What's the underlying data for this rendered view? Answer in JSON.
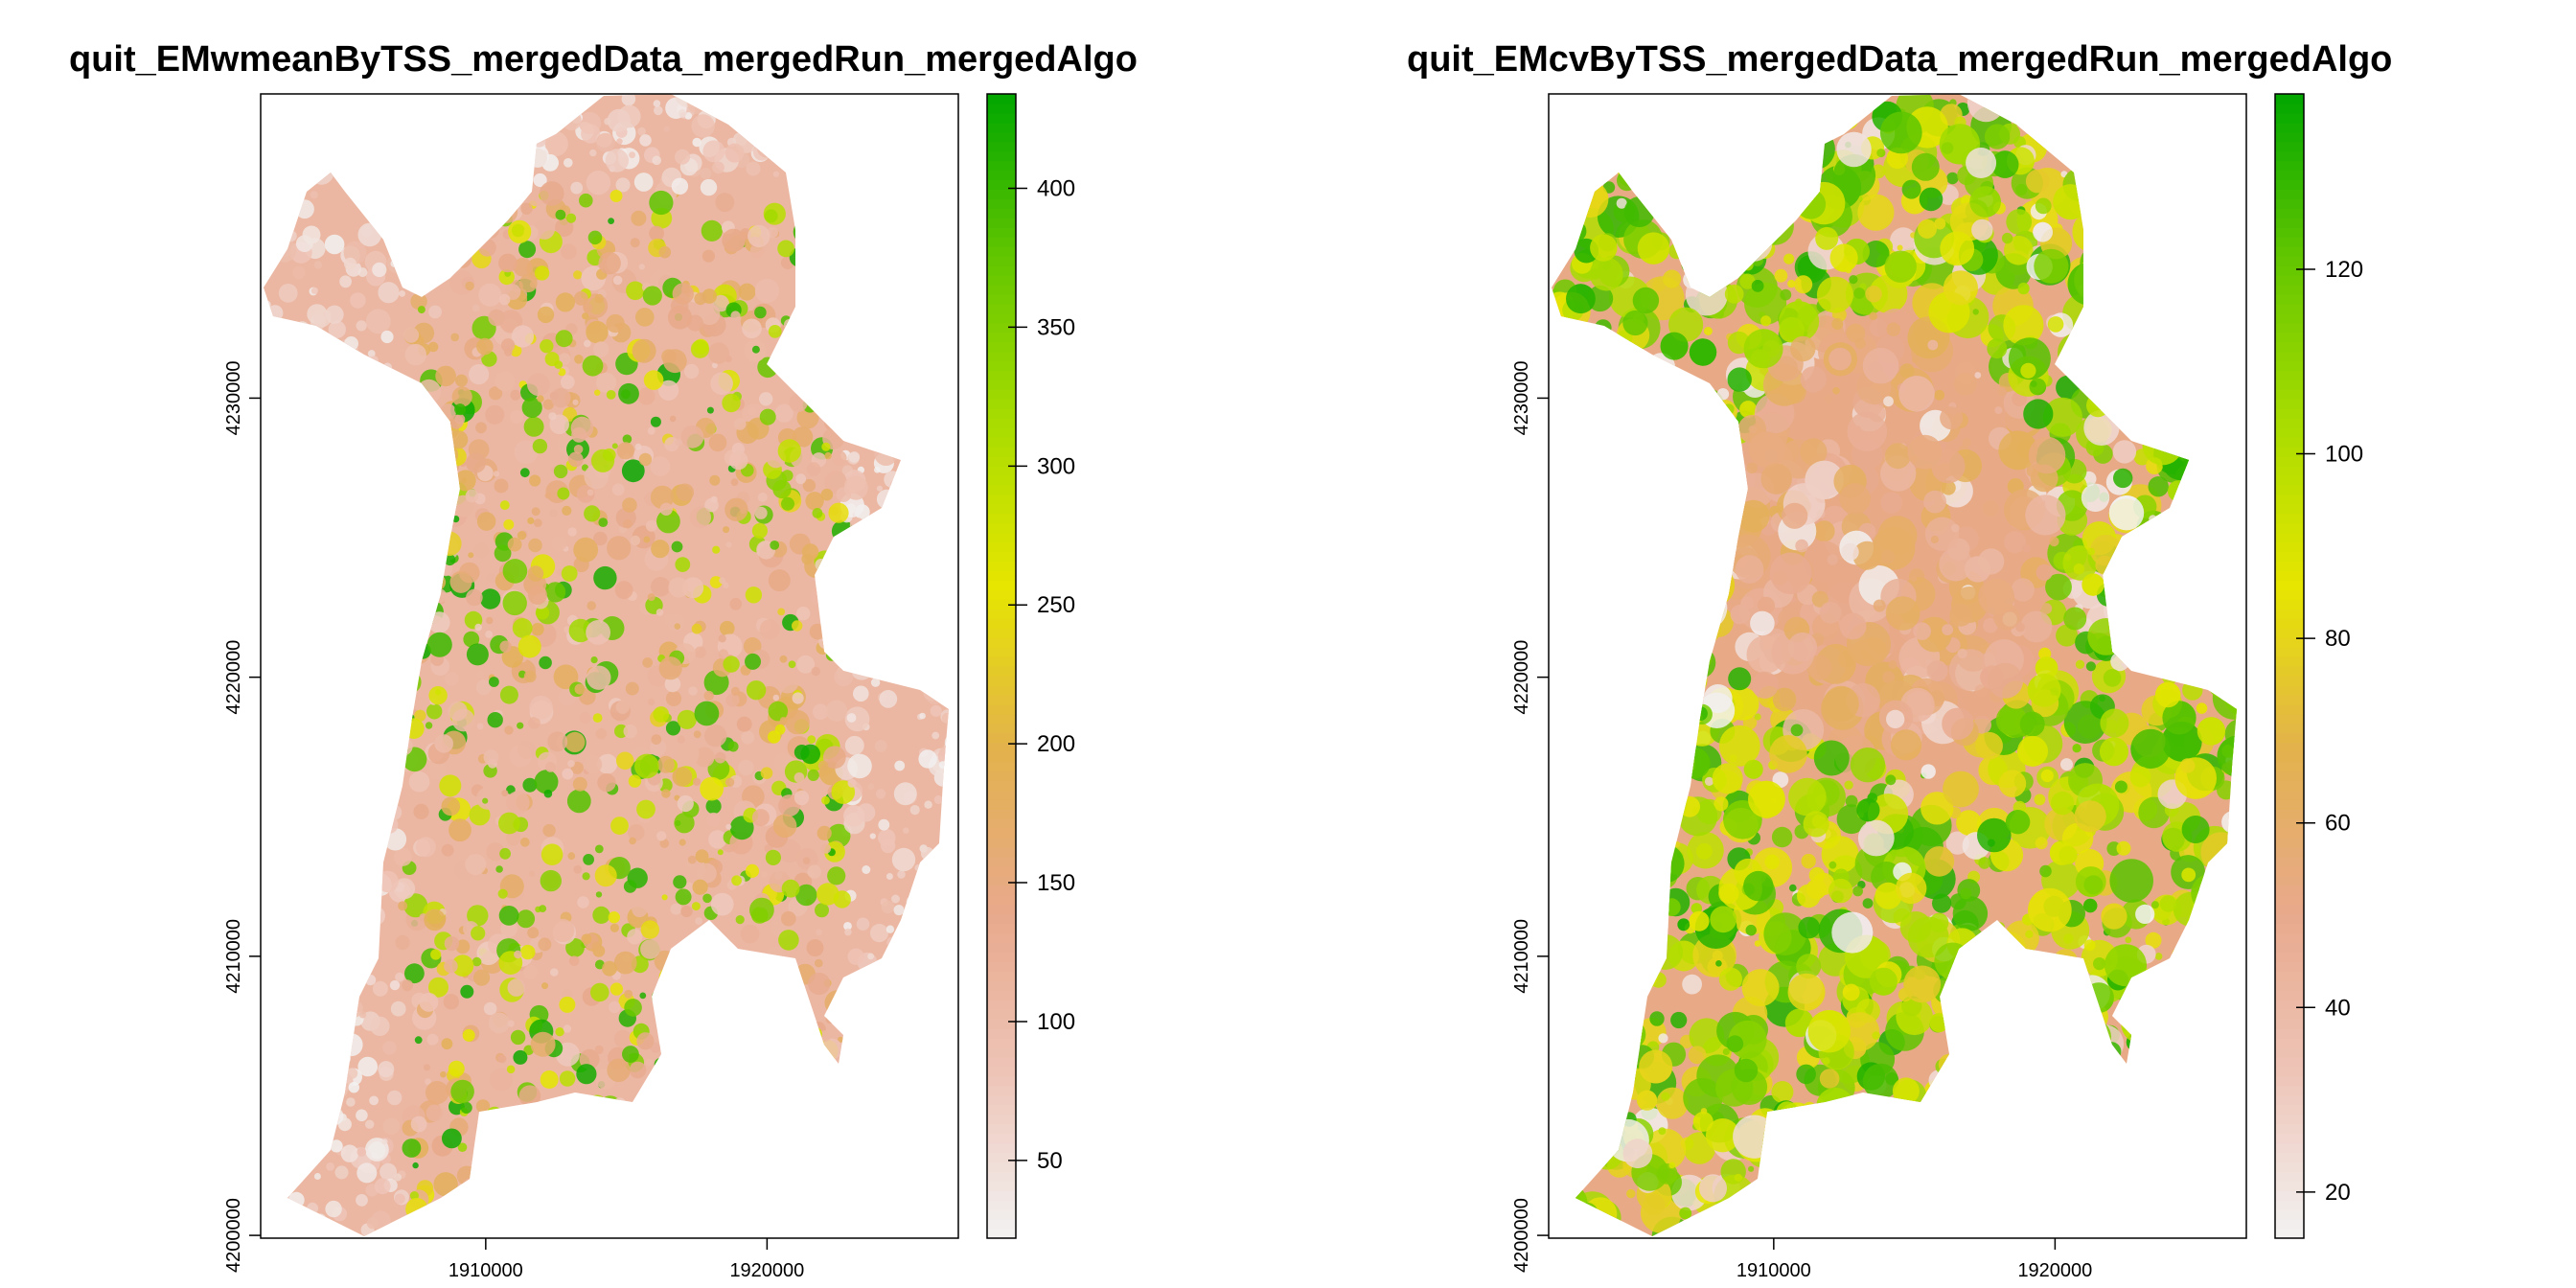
{
  "chart_data": [
    {
      "type": "heatmap",
      "title": "quit_EMwmeanByTSS_mergedData_mergedRun_mergedAlgo",
      "xlabel": "",
      "ylabel": "",
      "x_ticks": [
        1910000,
        1920000
      ],
      "y_ticks": [
        4200000,
        4210000,
        4220000,
        4230000
      ],
      "x_tick_labels": [
        "1910000",
        "1920000"
      ],
      "y_tick_labels": [
        "4200000",
        "4210000",
        "4220000",
        "4230000"
      ],
      "xlim": [
        1902000,
        1926800
      ],
      "ylim": [
        4199900,
        4240900
      ],
      "legend": {
        "placement": "right",
        "range": [
          22,
          434
        ],
        "ticks": [
          50,
          100,
          150,
          200,
          250,
          300,
          350,
          400
        ],
        "tick_labels": [
          "50",
          "100",
          "150",
          "200",
          "250",
          "300",
          "350",
          "400"
        ]
      },
      "color_ramp": [
        "#f2f2f2",
        "#eec5b8",
        "#e8a98c",
        "#e3b24c",
        "#e6e600",
        "#a8dc00",
        "#63c600",
        "#00a600"
      ],
      "values_summary": "raster of weighted mean values; mostly ~70–180 with patches up to ~430"
    },
    {
      "type": "heatmap",
      "title": "quit_EMcvByTSS_mergedData_mergedRun_mergedAlgo",
      "xlabel": "",
      "ylabel": "",
      "x_ticks": [
        1910000,
        1920000
      ],
      "y_ticks": [
        4200000,
        4210000,
        4220000,
        4230000
      ],
      "x_tick_labels": [
        "1910000",
        "1920000"
      ],
      "y_tick_labels": [
        "4200000",
        "4210000",
        "4220000",
        "4230000"
      ],
      "xlim": [
        1902000,
        1926800
      ],
      "ylim": [
        4199900,
        4240900
      ],
      "legend": {
        "placement": "right",
        "range": [
          15,
          139
        ],
        "ticks": [
          20,
          40,
          60,
          80,
          100,
          120
        ],
        "tick_labels": [
          "20",
          "40",
          "60",
          "80",
          "100",
          "120"
        ]
      },
      "color_ramp": [
        "#f2f2f2",
        "#eec5b8",
        "#e8a98c",
        "#e3b24c",
        "#e6e600",
        "#a8dc00",
        "#63c600",
        "#00a600"
      ],
      "values_summary": "raster of coefficient of variation; mostly ~45–60 in the centre, ~80–130 on the edges"
    }
  ]
}
